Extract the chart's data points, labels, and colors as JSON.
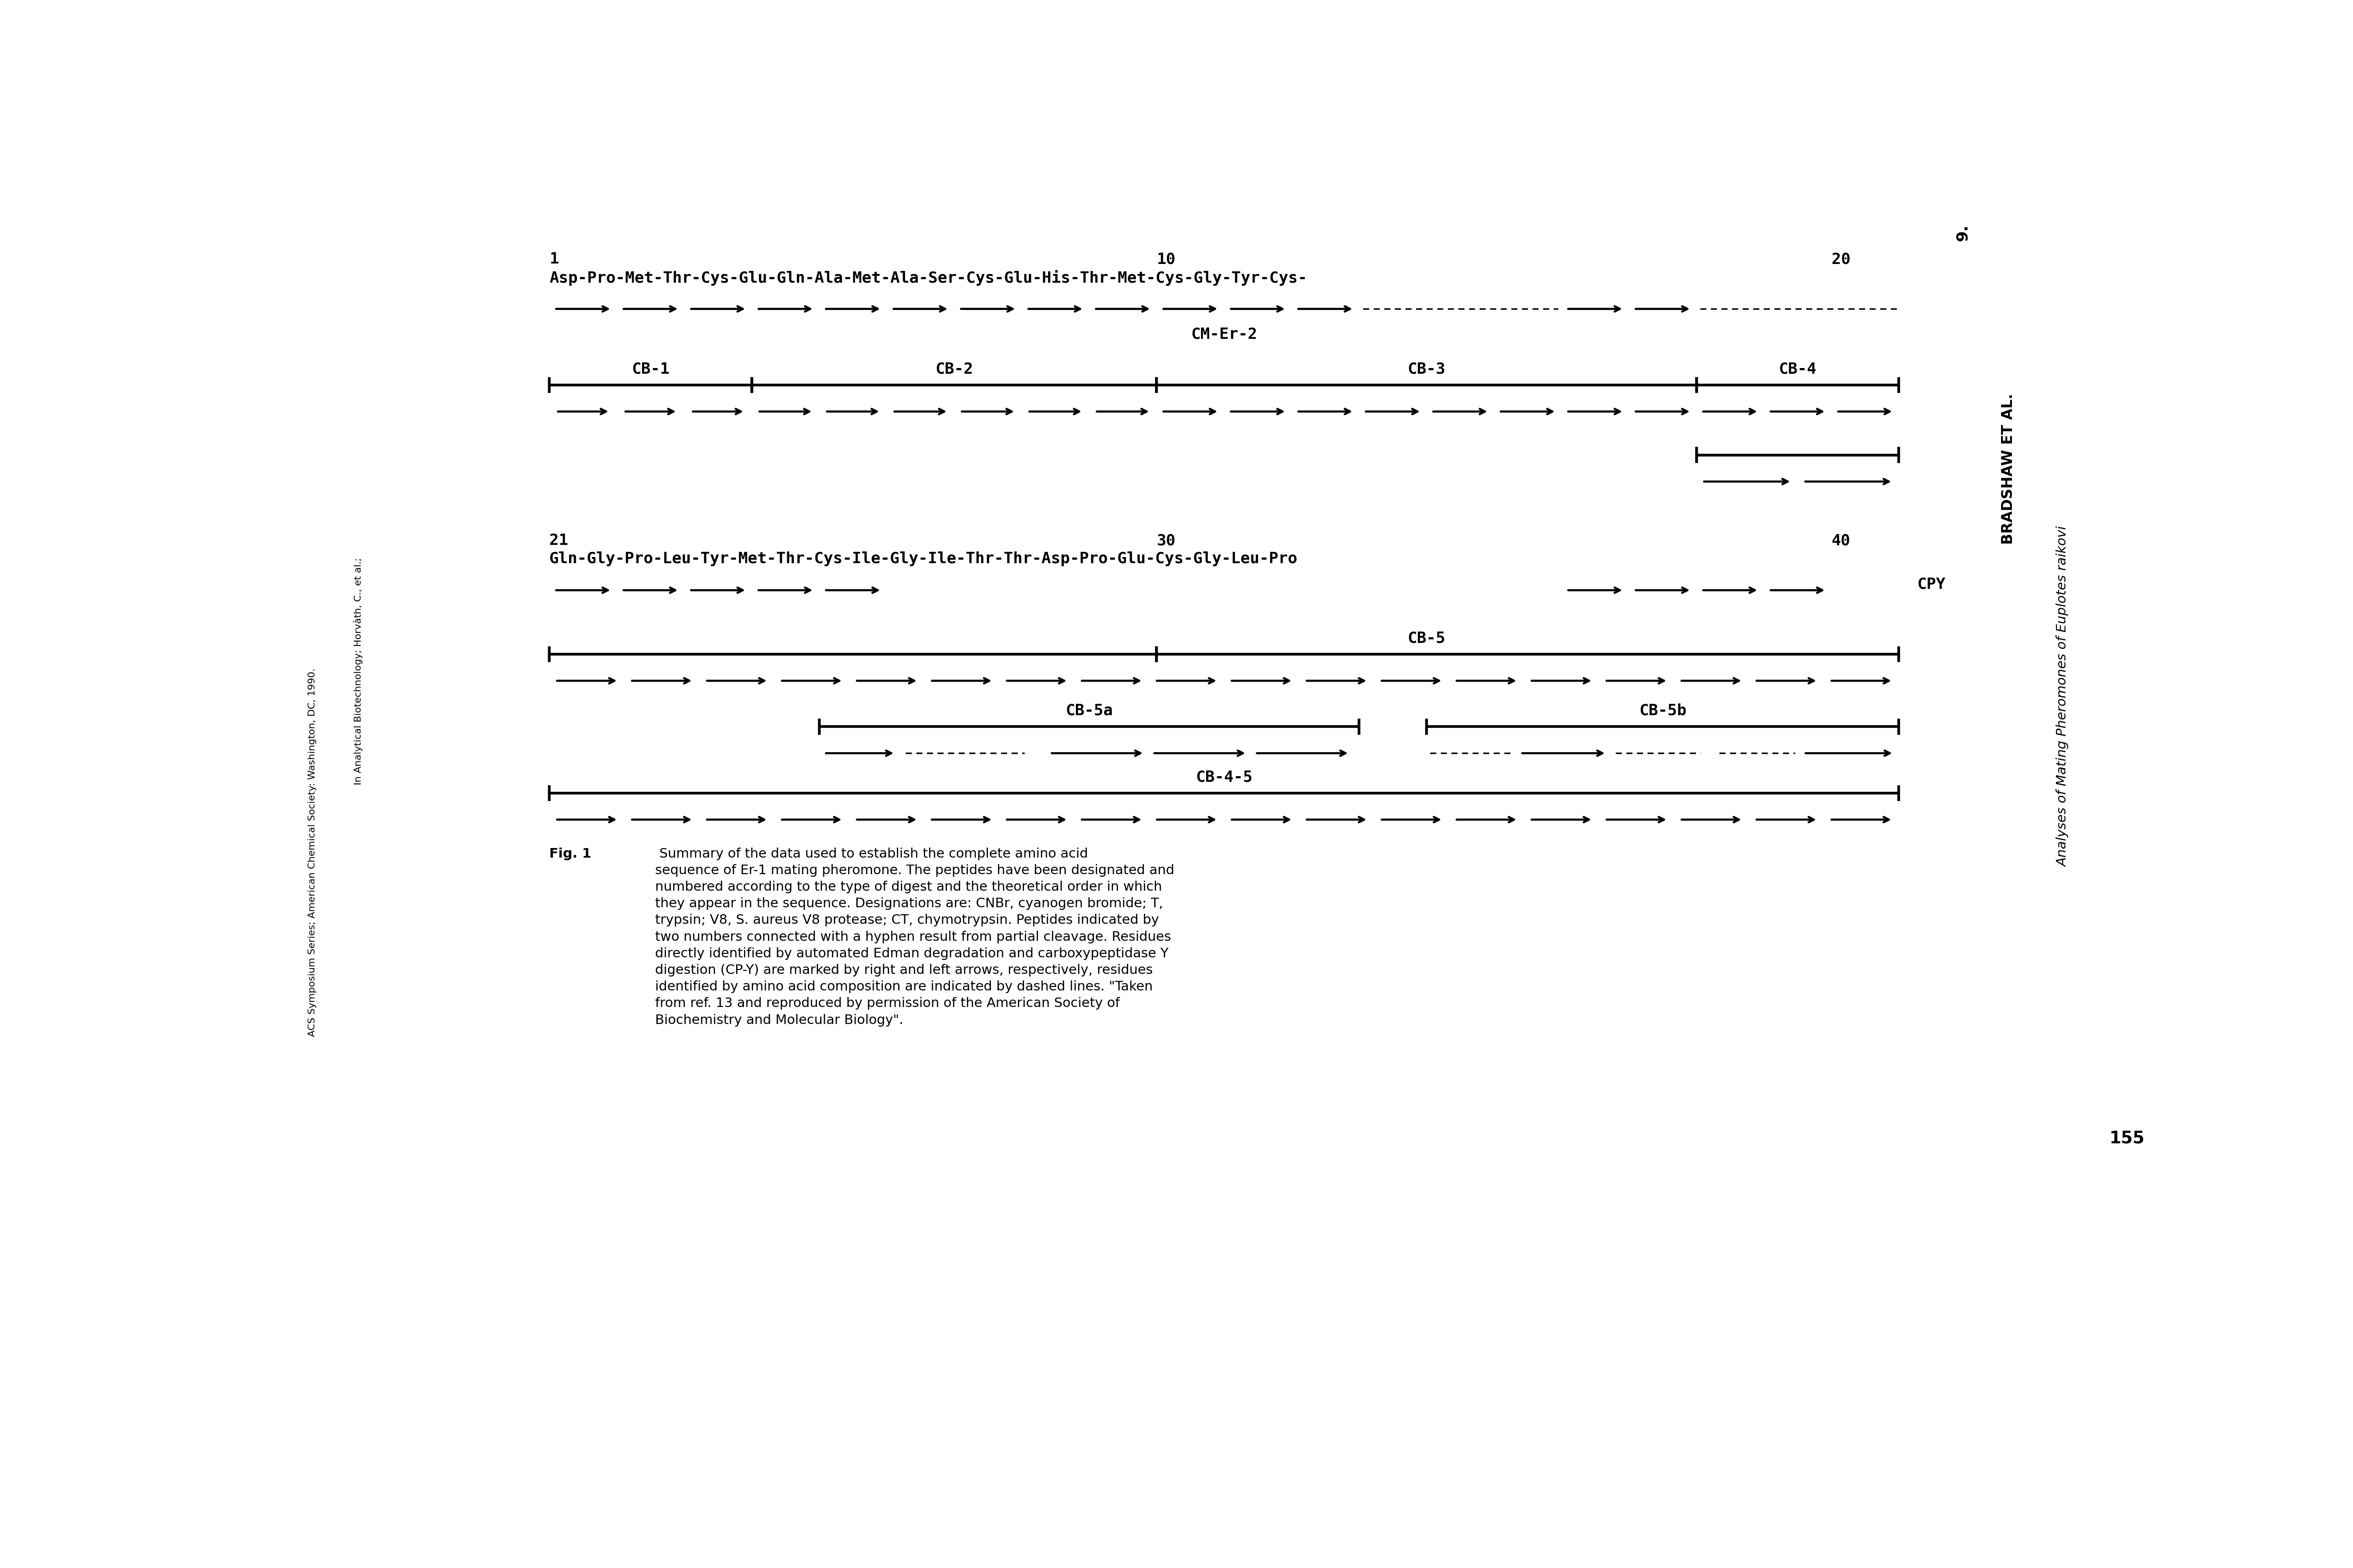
{
  "bg_color": "#ffffff",
  "fig_width": 54.02,
  "fig_height": 36.0,
  "seq1": "Asp-Pro-Met-Thr-Cys-Glu-Gln-Ala-Met-Ala-Ser-Cys-Glu-His-Thr-Met-Cys-Gly-Tyr-Cys-",
  "seq2": "Gln-Gly-Pro-Leu-Tyr-Met-Thr-Cys-Ile-Gly-Ile-Thr-Thr-Asp-Pro-Glu-Cys-Gly-Leu-Pro",
  "caption_title": "Fig. 1",
  "caption_body": " Summary of the data used to establish the complete amino acid\nsequence of Er-1 mating pheromone. The peptides have been designated and\nnumbered according to the type of digest and the theoretical order in which\nthey appear in the sequence. Designations are: CNBr, cyanogen bromide; T,\ntrypsin; V8, S. aureus V8 protease; CT, chymotrypsin. Peptides indicated by\ntwo numbers connected with a hyphen result from partial cleavage. Residues\ndirectly identified by automated Edman degradation and carboxypeptidase Y\ndigestion (CP-Y) are marked by right and left arrows, respectively, residues\nidentified by amino acid composition are indicated by dashed lines. \"Taken\nfrom ref. 13 and reproduced by permission of the American Society of\nBiochemistry and Molecular Biology\".",
  "right_top": "9.",
  "right_mid": "BRADSHAW ET AL.",
  "right_italic": "Analyses of Mating Pheromones of Euplotes raikovi",
  "right_num": "155",
  "left_text1": "ACS Symposium Series; American Chemical Society: Washington, DC, 1990.",
  "left_text2": "In Analytical Biotechnology; Horvàth, C., et al.;"
}
